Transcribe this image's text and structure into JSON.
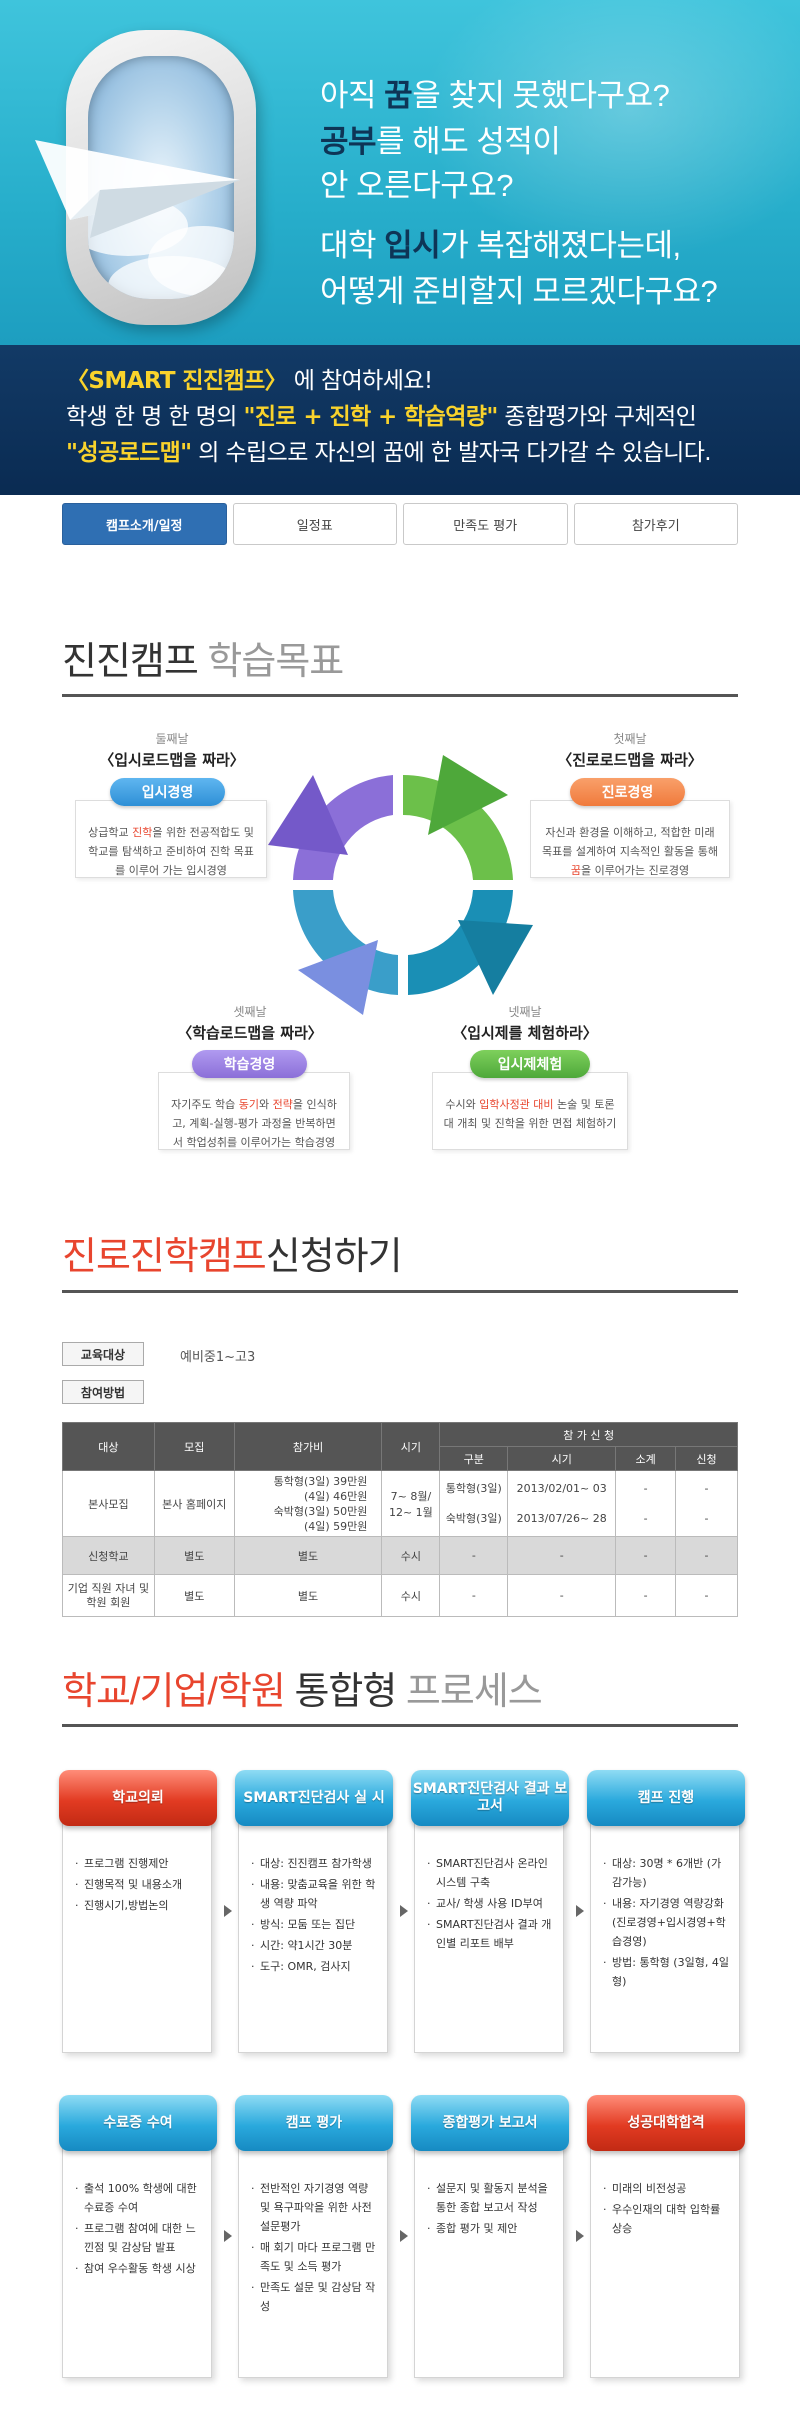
{
  "hero": {
    "line1_kw": "꿈",
    "line1_pre": "아직",
    "line1_post": "을 찾지 못했다구요?",
    "line2_kw": "공부",
    "line2_post": "를 해도 성적이",
    "line3": "안 오른다구요?",
    "line4_pre": "대학",
    "line4_kw": "입시",
    "line4_post": "가 복잡해졌다는데,",
    "line5": "어떻게 준비할지 모르겠다구요?"
  },
  "band": {
    "l1_highlight": "〈SMART 진진캠프〉",
    "l1_post": " 에 참여하세요!",
    "l2_pre": "학생 한 명 한 명의 ",
    "l2_highlight": "\"진로 + 진학 + 학습역량\"",
    "l2_post": " 종합평가와 구체적인",
    "l3_highlight": "\"성공로드맵\"",
    "l3_post": " 의 수립으로 자신의 꿈에 한 발자국 다가갈 수 있습니다."
  },
  "tabs": [
    "캠프소개/일정",
    "일정표",
    "만족도 평가",
    "참가후기"
  ],
  "goals": {
    "title_main": "진진캠프",
    "title_sub": " 학습목표",
    "items": [
      {
        "order": "둘째날",
        "title": "〈입시로드맵을 짜라〉",
        "pill": "입시경영",
        "text_pre": "상급학교 ",
        "text_kw": "진학",
        "text_post": "을 위한 전공적합도 및 학교를 탐색하고 준비하여 진학 목표를 이루어 가는 입시경영"
      },
      {
        "order": "첫째날",
        "title": "〈진로로드맵을 짜라〉",
        "pill": "진로경영",
        "text_pre": "자신과 환경을 이해하고, 적합한 미래 목표를 설계하여 지속적인 활동을 통해 ",
        "text_kw": "꿈",
        "text_post": "을 이루어가는 진로경영"
      },
      {
        "order": "셋째날",
        "title": "〈학습로드맵을 짜라〉",
        "pill": "학습경영",
        "text_pre": "자기주도 학습 ",
        "text_kw": "동기",
        "text_mid": "와 ",
        "text_kw2": "전략",
        "text_post": "을 인식하고, 계획-실행-평가 과정을 반복하면서 학업성취를 이루어가는 학습경영"
      },
      {
        "order": "넷째날",
        "title": "〈입시제를 체험하라〉",
        "pill": "입시제체험",
        "text_pre": "수시와 ",
        "text_kw": "입학사정관 대비",
        "text_post": " 논술 및 토론대 개최 및 진학을 위한 면접 체험하기"
      }
    ]
  },
  "apply": {
    "title_red": "진로진학캠프",
    "title_dark": "신청하기",
    "target_label": "교육대상",
    "target_value": "예비중1~고3",
    "method_label": "참여방법",
    "table": {
      "headers": [
        "대상",
        "모집",
        "참가비",
        "시기",
        "참 가 신 청"
      ],
      "sub_headers": [
        "구분",
        "시기",
        "소계",
        "신청"
      ],
      "row1": {
        "target": "본사모집",
        "recruit": "본사 홈페이지",
        "fee": [
          "통학형(3일) 39만원",
          "(4일) 46만원",
          "숙박형(3일) 50만원",
          "(4일) 59만원"
        ],
        "period": "7~ 8월/ 12~ 1월",
        "types": [
          "통학형(3일)",
          "숙박형(3일)"
        ],
        "dates": [
          "2013/02/01~ 03",
          "2013/07/26~ 28"
        ],
        "subtotal": [
          "-",
          "-"
        ],
        "apply": [
          "-",
          "-"
        ]
      },
      "row2": {
        "target": "신청학교",
        "recruit": "별도",
        "fee": "별도",
        "period": "수시",
        "c1": "-",
        "c2": "-",
        "c3": "-",
        "c4": "-"
      },
      "row3": {
        "target": "기업 직원 자녀 및 학원 회원",
        "recruit": "별도",
        "fee": "별도",
        "period": "수시",
        "c1": "-",
        "c2": "-",
        "c3": "-",
        "c4": "-"
      }
    }
  },
  "process": {
    "title_red": "학교/기업/학원",
    "title_dark": " 통합형",
    "title_gray": " 프로세스",
    "cards": [
      {
        "head": "학교의뢰",
        "items": [
          "프로그램 진행제안",
          "진행목적 및 내용소개",
          "진행시기,방법논의"
        ]
      },
      {
        "head": "SMART진단검사 실 시",
        "items": [
          "대상: 진진캠프 참가학생",
          "내용: 맞춤교육을 위한 학생 역량 파악",
          "방식: 모둠 또는 집단",
          "시간: 약1시간 30분",
          "도구: OMR, 검사지"
        ]
      },
      {
        "head": "SMART진단검사 결과 보고서",
        "items": [
          "SMART진단검사 온라인 시스템 구축",
          "교사/ 학생 사용 ID부여",
          "SMART진단검사 결과 개인별 리포트 배부"
        ]
      },
      {
        "head": "캠프 진행",
        "items": [
          "대상: 30명 * 6개반 (가감가능)",
          "내용: 자기경영 역량강화 (진로경영+입시경영+학습경영)",
          "방법: 통학형 (3일형, 4일형)"
        ]
      },
      {
        "head": "수료증 수여",
        "items": [
          "출석 100% 학생에 대한 수료증 수여",
          "프로그램 참여에 대한 느낀점 및 감상담 발표",
          "참여 우수활동 학생 시상"
        ]
      },
      {
        "head": "캠프 평가",
        "items": [
          "전반적인 자기경영 역량 및 욕구파악을 위한 사전 설문평가",
          "매 회기 마다 프로그램 만족도 및 소득 평가",
          "만족도 설문 및 감상담 작성"
        ]
      },
      {
        "head": "종합평가 보고서",
        "items": [
          "설문지 및 활동지 분석을 통한 종합 보고서 작성",
          "종합 평가 및 제안"
        ]
      },
      {
        "head": "성공대학합격",
        "items": [
          "미래의 비전성공",
          "우수인재의 대학 입학률 상승"
        ]
      }
    ]
  },
  "colors": {
    "red": "#e8452e",
    "blue_pill": "#2e8fd6",
    "orange_pill": "#f07a3c",
    "purple_pill": "#8b6fd8",
    "green_pill": "#4ea83a"
  }
}
